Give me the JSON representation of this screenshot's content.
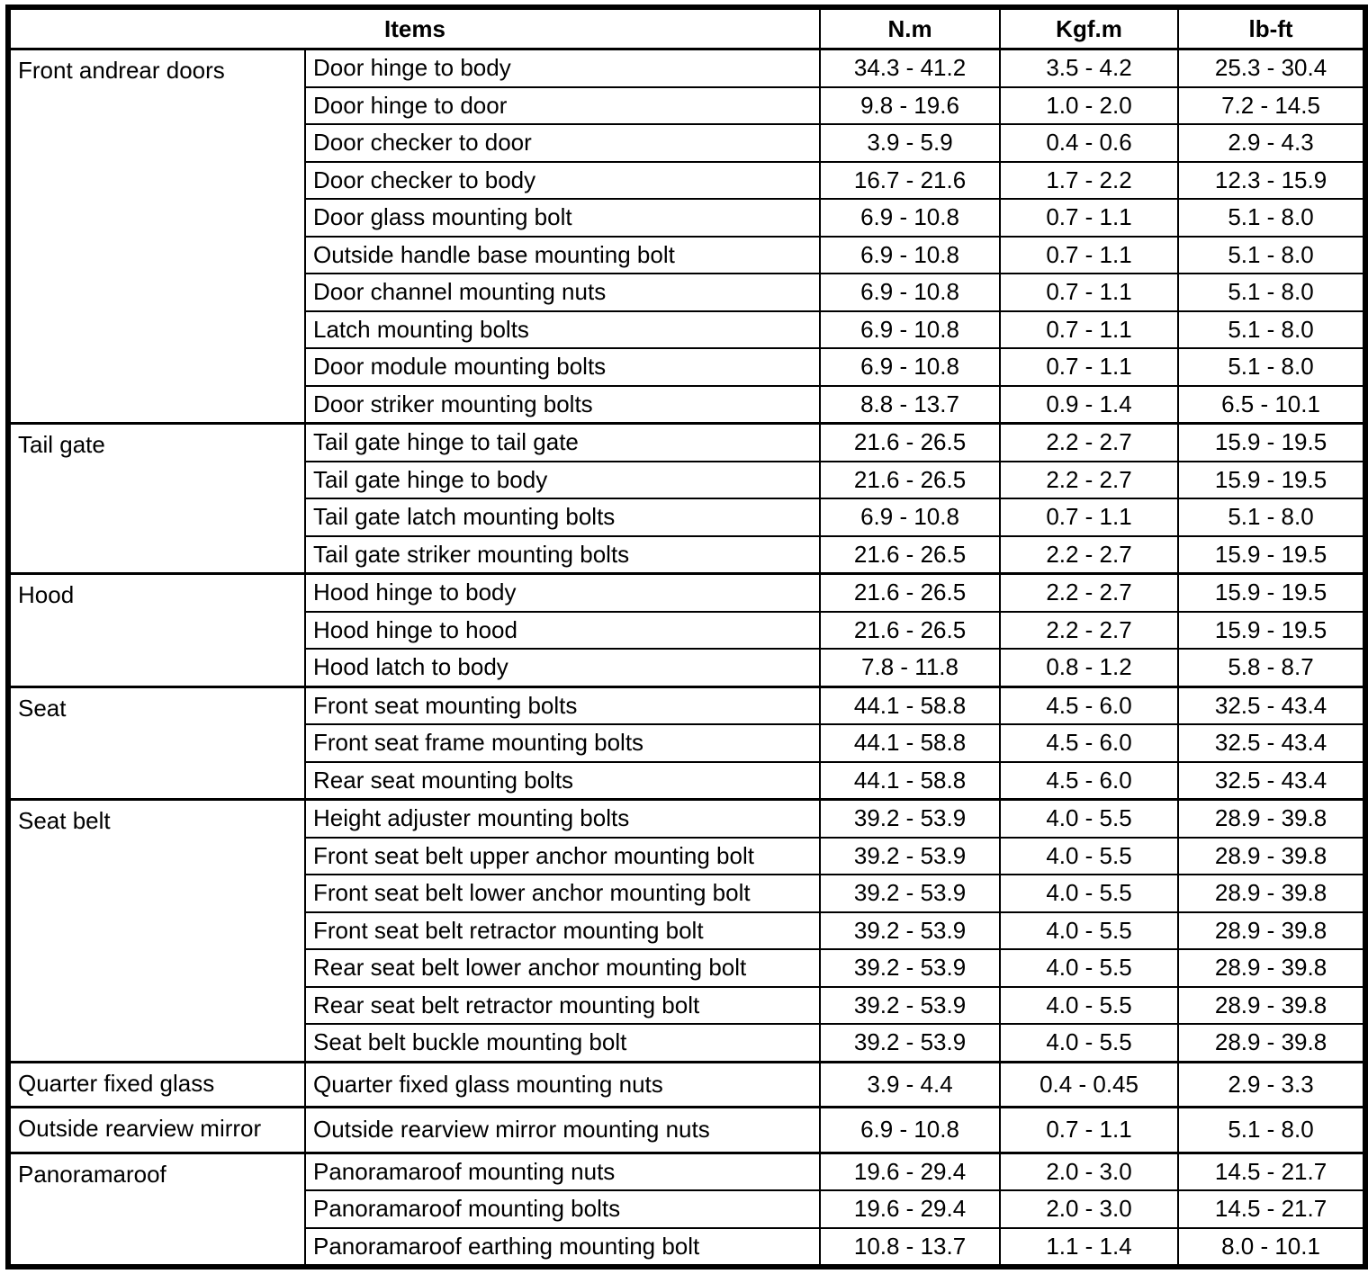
{
  "table": {
    "headers": {
      "items": "Items",
      "nm": "N.m",
      "kgfm": "Kgf.m",
      "lbft": "lb-ft"
    },
    "groups": [
      {
        "name": "Front andrear doors",
        "rows": [
          {
            "item": "Door hinge to body",
            "nm": "34.3 - 41.2",
            "kgfm": "3.5 - 4.2",
            "lbft": "25.3 - 30.4"
          },
          {
            "item": "Door hinge to door",
            "nm": "9.8 - 19.6",
            "kgfm": "1.0 - 2.0",
            "lbft": "7.2 - 14.5"
          },
          {
            "item": "Door checker to door",
            "nm": "3.9 - 5.9",
            "kgfm": "0.4 - 0.6",
            "lbft": "2.9 - 4.3"
          },
          {
            "item": "Door checker to body",
            "nm": "16.7 - 21.6",
            "kgfm": "1.7 - 2.2",
            "lbft": "12.3 - 15.9"
          },
          {
            "item": "Door glass mounting bolt",
            "nm": "6.9 - 10.8",
            "kgfm": "0.7 - 1.1",
            "lbft": "5.1 - 8.0"
          },
          {
            "item": "Outside handle base mounting bolt",
            "nm": "6.9 - 10.8",
            "kgfm": "0.7 - 1.1",
            "lbft": "5.1 - 8.0"
          },
          {
            "item": "Door channel mounting nuts",
            "nm": "6.9 - 10.8",
            "kgfm": "0.7 - 1.1",
            "lbft": "5.1 - 8.0"
          },
          {
            "item": "Latch mounting bolts",
            "nm": "6.9 - 10.8",
            "kgfm": "0.7 - 1.1",
            "lbft": "5.1 - 8.0"
          },
          {
            "item": "Door module mounting bolts",
            "nm": "6.9 - 10.8",
            "kgfm": "0.7 - 1.1",
            "lbft": "5.1 - 8.0"
          },
          {
            "item": "Door striker mounting bolts",
            "nm": "8.8 - 13.7",
            "kgfm": "0.9 - 1.4",
            "lbft": "6.5 - 10.1"
          }
        ]
      },
      {
        "name": "Tail gate",
        "rows": [
          {
            "item": "Tail gate hinge to tail gate",
            "nm": "21.6 - 26.5",
            "kgfm": "2.2 - 2.7",
            "lbft": "15.9 - 19.5"
          },
          {
            "item": "Tail gate hinge to body",
            "nm": "21.6 - 26.5",
            "kgfm": "2.2 - 2.7",
            "lbft": "15.9 - 19.5"
          },
          {
            "item": "Tail gate latch mounting bolts",
            "nm": "6.9 - 10.8",
            "kgfm": "0.7 - 1.1",
            "lbft": "5.1 - 8.0"
          },
          {
            "item": "Tail gate striker mounting bolts",
            "nm": "21.6 - 26.5",
            "kgfm": "2.2 - 2.7",
            "lbft": "15.9 - 19.5"
          }
        ]
      },
      {
        "name": "Hood",
        "rows": [
          {
            "item": "Hood hinge to body",
            "nm": "21.6 - 26.5",
            "kgfm": "2.2 - 2.7",
            "lbft": "15.9 - 19.5"
          },
          {
            "item": "Hood hinge to hood",
            "nm": "21.6 - 26.5",
            "kgfm": "2.2 - 2.7",
            "lbft": "15.9 - 19.5"
          },
          {
            "item": "Hood latch to body",
            "nm": "7.8 - 11.8",
            "kgfm": "0.8 - 1.2",
            "lbft": "5.8 - 8.7"
          }
        ]
      },
      {
        "name": "Seat",
        "rows": [
          {
            "item": "Front seat mounting bolts",
            "nm": "44.1 - 58.8",
            "kgfm": "4.5 - 6.0",
            "lbft": "32.5 - 43.4"
          },
          {
            "item": "Front seat frame mounting bolts",
            "nm": "44.1 - 58.8",
            "kgfm": "4.5 - 6.0",
            "lbft": "32.5 - 43.4"
          },
          {
            "item": "Rear seat mounting bolts",
            "nm": "44.1 - 58.8",
            "kgfm": "4.5 - 6.0",
            "lbft": "32.5 - 43.4"
          }
        ]
      },
      {
        "name": "Seat belt",
        "rows": [
          {
            "item": "Height adjuster mounting bolts",
            "nm": "39.2 - 53.9",
            "kgfm": "4.0 - 5.5",
            "lbft": "28.9 - 39.8"
          },
          {
            "item": "Front seat belt upper anchor mounting bolt",
            "nm": "39.2 - 53.9",
            "kgfm": "4.0 - 5.5",
            "lbft": "28.9 - 39.8"
          },
          {
            "item": "Front seat belt lower anchor mounting bolt",
            "nm": "39.2 - 53.9",
            "kgfm": "4.0 - 5.5",
            "lbft": "28.9 - 39.8"
          },
          {
            "item": "Front seat belt retractor mounting bolt",
            "nm": "39.2 - 53.9",
            "kgfm": "4.0 - 5.5",
            "lbft": "28.9 - 39.8"
          },
          {
            "item": "Rear seat belt lower anchor mounting bolt",
            "nm": "39.2 - 53.9",
            "kgfm": "4.0 - 5.5",
            "lbft": "28.9 - 39.8"
          },
          {
            "item": "Rear seat belt retractor mounting bolt",
            "nm": "39.2 - 53.9",
            "kgfm": "4.0 - 5.5",
            "lbft": "28.9 - 39.8"
          },
          {
            "item": "Seat belt buckle mounting bolt",
            "nm": "39.2 - 53.9",
            "kgfm": "4.0 - 5.5",
            "lbft": "28.9 - 39.8"
          }
        ]
      },
      {
        "name": "Quarter fixed glass",
        "rows": [
          {
            "item": "Quarter fixed glass mounting nuts",
            "nm": "3.9 - 4.4",
            "kgfm": "0.4 - 0.45",
            "lbft": "2.9 - 3.3"
          }
        ]
      },
      {
        "name": "Outside rearview mirror",
        "rows": [
          {
            "item": "Outside rearview mirror mounting nuts",
            "nm": "6.9 - 10.8",
            "kgfm": "0.7 - 1.1",
            "lbft": "5.1 - 8.0"
          }
        ]
      },
      {
        "name": "Panoramaroof",
        "rows": [
          {
            "item": "Panoramaroof mounting nuts",
            "nm": "19.6 - 29.4",
            "kgfm": "2.0 - 3.0",
            "lbft": "14.5 - 21.7"
          },
          {
            "item": "Panoramaroof mounting bolts",
            "nm": "19.6 - 29.4",
            "kgfm": "2.0 - 3.0",
            "lbft": "14.5 - 21.7"
          },
          {
            "item": "Panoramaroof earthing mounting bolt",
            "nm": "10.8 - 13.7",
            "kgfm": "1.1 - 1.4",
            "lbft": "8.0 - 10.1"
          }
        ]
      }
    ]
  }
}
